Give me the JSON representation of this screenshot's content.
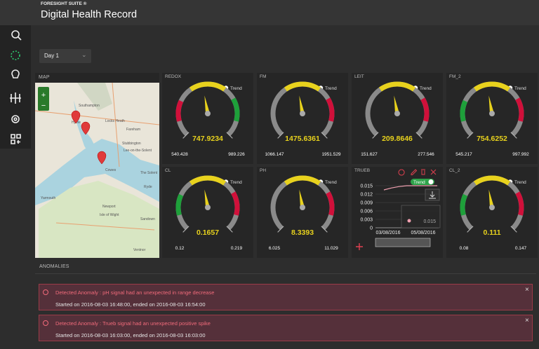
{
  "header": {
    "suite": "FORESIGHT SUITE ®",
    "title": "Digital Health Record"
  },
  "filter": {
    "day": "Day 1"
  },
  "map": {
    "label": "MAP",
    "zoom_in": "+",
    "zoom_out": "−",
    "labels": [
      "Southampton",
      "Hythe",
      "Locks Heath",
      "Fareham",
      "Stubbington",
      "Lee-on-the-Solent",
      "Cowes",
      "The Solent",
      "Ryde",
      "Yarmouth",
      "Newport",
      "Isle of Wight",
      "Sandown",
      "Ventnor"
    ]
  },
  "gauges": [
    {
      "name": "REDOX",
      "trend": "Trend",
      "value": 747.9234,
      "min": 540.428,
      "max": 989.226,
      "left_color": "#d0103a",
      "right_color": "#1ea03a"
    },
    {
      "name": "FM",
      "trend": "Trend",
      "value": 1475.6361,
      "min": 1066.147,
      "max": 1951.529,
      "right_color": "#d0103a"
    },
    {
      "name": "LEIT",
      "trend": "Trend",
      "value": 209.8646,
      "min": 151.627,
      "max": 277.546,
      "right_color": "#d0103a"
    },
    {
      "name": "FM_2",
      "trend": "Trend",
      "value": 754.6252,
      "min": 545.217,
      "max": 997.992,
      "left_color": "#1ea03a",
      "right_color": "#d0103a"
    },
    {
      "name": "CL",
      "trend": "Trend",
      "value": 0.1657,
      "min": 0.12,
      "max": 0.219,
      "left_color": "#1ea03a",
      "right_color": "#d0103a"
    },
    {
      "name": "PH",
      "trend": "Trend",
      "value": 8.3393,
      "min": 6.025,
      "max": 11.029,
      "right_color": "#d0103a"
    },
    {
      "name": "CL_2",
      "trend": "Trend",
      "value": 0.111,
      "min": 0.08,
      "max": 0.147,
      "left_color": "#1ea03a",
      "right_color": "#d0103a"
    }
  ],
  "trueb": {
    "name": "TRUEB",
    "trend": "Trend",
    "ylim": [
      0,
      0.015
    ],
    "yticks": [
      0,
      0.003,
      0.006,
      0.009,
      0.012,
      0.015
    ],
    "xlabels": [
      "03/08/2016",
      "05/08/2016"
    ],
    "values": [
      0.0135,
      0.0142,
      0.0147,
      0.015,
      0.015,
      0.015,
      0.015,
      0.015
    ],
    "color": "#f0a0b0",
    "tooltip_value": 0.015
  },
  "anomalies": {
    "label": "ANOMALIES",
    "items": [
      {
        "title": "Detected Anomaly : pH signal had an unexpected in range decrease",
        "detail": "Started on 2016-08-03 16:48:00, ended on 2016-08-03 16:54:00",
        "close": "×"
      },
      {
        "title": "Detected Anomaly : Trueb signal had an unexpected positive spike",
        "detail": "Started on 2016-08-03 16:03:00, ended on 2016-08-03 16:03:00",
        "close": "×"
      }
    ]
  }
}
